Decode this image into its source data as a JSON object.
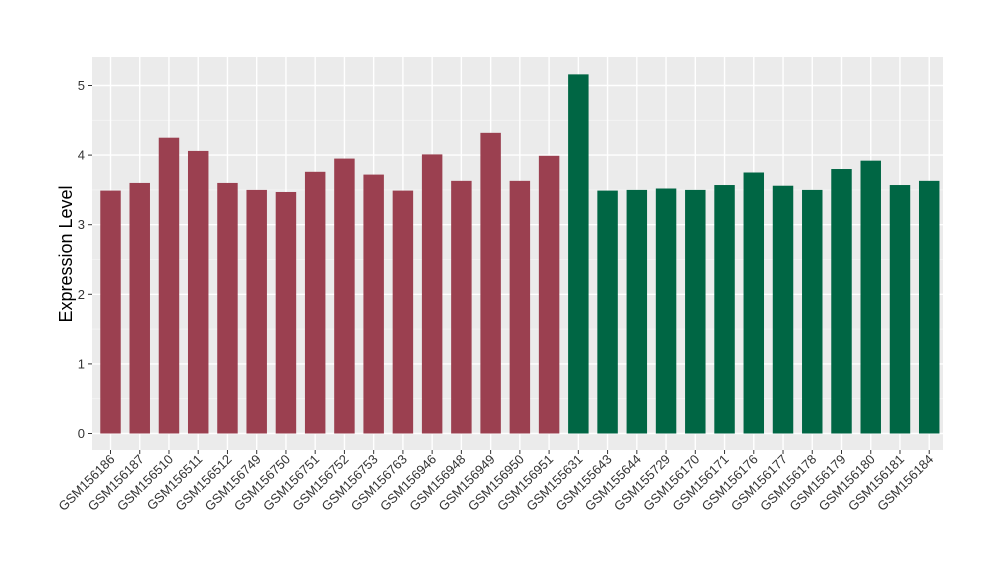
{
  "chart_data": {
    "type": "bar",
    "title": "",
    "xlabel": "",
    "ylabel": "Expression Level",
    "ylim": [
      0,
      5.3
    ],
    "yticks": [
      0,
      1,
      2,
      3,
      4,
      5
    ],
    "grid": true,
    "legend": "none",
    "categories": [
      "GSM156186",
      "GSM156187",
      "GSM156510",
      "GSM156511",
      "GSM156512",
      "GSM156749",
      "GSM156750",
      "GSM156751",
      "GSM156752",
      "GSM156753",
      "GSM156763",
      "GSM156946",
      "GSM156948",
      "GSM156949",
      "GSM156950",
      "GSM156951",
      "GSM155631",
      "GSM155643",
      "GSM155644",
      "GSM155729",
      "GSM156170",
      "GSM156171",
      "GSM156176",
      "GSM156177",
      "GSM156178",
      "GSM156179",
      "GSM156180",
      "GSM156181",
      "GSM156184"
    ],
    "values": [
      3.49,
      3.6,
      4.25,
      4.06,
      3.6,
      3.5,
      3.47,
      3.76,
      3.95,
      3.72,
      3.49,
      4.01,
      3.63,
      4.32,
      3.63,
      3.99,
      5.16,
      3.49,
      3.5,
      3.52,
      3.5,
      3.57,
      3.75,
      3.56,
      3.5,
      3.8,
      3.92,
      3.57,
      3.63
    ],
    "group_colors": [
      "#9B4050",
      "#006644"
    ],
    "group_sizes": [
      16,
      13
    ]
  }
}
